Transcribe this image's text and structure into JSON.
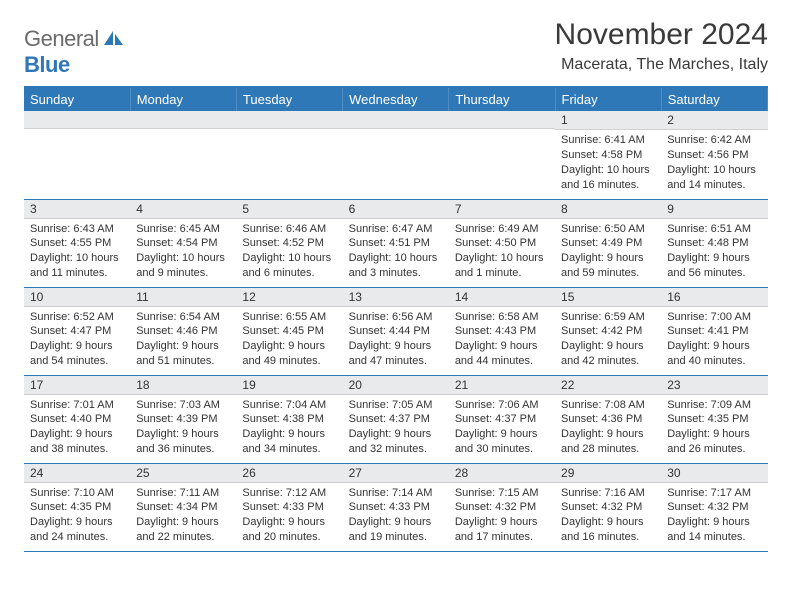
{
  "brand": {
    "name_a": "General",
    "name_b": "Blue"
  },
  "title": "November 2024",
  "location": "Macerata, The Marches, Italy",
  "colors": {
    "accent": "#2f78b7",
    "header_bg": "#2f78b7",
    "daynum_bg": "#e9eaeb",
    "text": "#333333"
  },
  "weekday_labels": [
    "Sunday",
    "Monday",
    "Tuesday",
    "Wednesday",
    "Thursday",
    "Friday",
    "Saturday"
  ],
  "weeks": [
    [
      null,
      null,
      null,
      null,
      null,
      {
        "n": "1",
        "sunrise": "Sunrise: 6:41 AM",
        "sunset": "Sunset: 4:58 PM",
        "daylight": "Daylight: 10 hours and 16 minutes."
      },
      {
        "n": "2",
        "sunrise": "Sunrise: 6:42 AM",
        "sunset": "Sunset: 4:56 PM",
        "daylight": "Daylight: 10 hours and 14 minutes."
      }
    ],
    [
      {
        "n": "3",
        "sunrise": "Sunrise: 6:43 AM",
        "sunset": "Sunset: 4:55 PM",
        "daylight": "Daylight: 10 hours and 11 minutes."
      },
      {
        "n": "4",
        "sunrise": "Sunrise: 6:45 AM",
        "sunset": "Sunset: 4:54 PM",
        "daylight": "Daylight: 10 hours and 9 minutes."
      },
      {
        "n": "5",
        "sunrise": "Sunrise: 6:46 AM",
        "sunset": "Sunset: 4:52 PM",
        "daylight": "Daylight: 10 hours and 6 minutes."
      },
      {
        "n": "6",
        "sunrise": "Sunrise: 6:47 AM",
        "sunset": "Sunset: 4:51 PM",
        "daylight": "Daylight: 10 hours and 3 minutes."
      },
      {
        "n": "7",
        "sunrise": "Sunrise: 6:49 AM",
        "sunset": "Sunset: 4:50 PM",
        "daylight": "Daylight: 10 hours and 1 minute."
      },
      {
        "n": "8",
        "sunrise": "Sunrise: 6:50 AM",
        "sunset": "Sunset: 4:49 PM",
        "daylight": "Daylight: 9 hours and 59 minutes."
      },
      {
        "n": "9",
        "sunrise": "Sunrise: 6:51 AM",
        "sunset": "Sunset: 4:48 PM",
        "daylight": "Daylight: 9 hours and 56 minutes."
      }
    ],
    [
      {
        "n": "10",
        "sunrise": "Sunrise: 6:52 AM",
        "sunset": "Sunset: 4:47 PM",
        "daylight": "Daylight: 9 hours and 54 minutes."
      },
      {
        "n": "11",
        "sunrise": "Sunrise: 6:54 AM",
        "sunset": "Sunset: 4:46 PM",
        "daylight": "Daylight: 9 hours and 51 minutes."
      },
      {
        "n": "12",
        "sunrise": "Sunrise: 6:55 AM",
        "sunset": "Sunset: 4:45 PM",
        "daylight": "Daylight: 9 hours and 49 minutes."
      },
      {
        "n": "13",
        "sunrise": "Sunrise: 6:56 AM",
        "sunset": "Sunset: 4:44 PM",
        "daylight": "Daylight: 9 hours and 47 minutes."
      },
      {
        "n": "14",
        "sunrise": "Sunrise: 6:58 AM",
        "sunset": "Sunset: 4:43 PM",
        "daylight": "Daylight: 9 hours and 44 minutes."
      },
      {
        "n": "15",
        "sunrise": "Sunrise: 6:59 AM",
        "sunset": "Sunset: 4:42 PM",
        "daylight": "Daylight: 9 hours and 42 minutes."
      },
      {
        "n": "16",
        "sunrise": "Sunrise: 7:00 AM",
        "sunset": "Sunset: 4:41 PM",
        "daylight": "Daylight: 9 hours and 40 minutes."
      }
    ],
    [
      {
        "n": "17",
        "sunrise": "Sunrise: 7:01 AM",
        "sunset": "Sunset: 4:40 PM",
        "daylight": "Daylight: 9 hours and 38 minutes."
      },
      {
        "n": "18",
        "sunrise": "Sunrise: 7:03 AM",
        "sunset": "Sunset: 4:39 PM",
        "daylight": "Daylight: 9 hours and 36 minutes."
      },
      {
        "n": "19",
        "sunrise": "Sunrise: 7:04 AM",
        "sunset": "Sunset: 4:38 PM",
        "daylight": "Daylight: 9 hours and 34 minutes."
      },
      {
        "n": "20",
        "sunrise": "Sunrise: 7:05 AM",
        "sunset": "Sunset: 4:37 PM",
        "daylight": "Daylight: 9 hours and 32 minutes."
      },
      {
        "n": "21",
        "sunrise": "Sunrise: 7:06 AM",
        "sunset": "Sunset: 4:37 PM",
        "daylight": "Daylight: 9 hours and 30 minutes."
      },
      {
        "n": "22",
        "sunrise": "Sunrise: 7:08 AM",
        "sunset": "Sunset: 4:36 PM",
        "daylight": "Daylight: 9 hours and 28 minutes."
      },
      {
        "n": "23",
        "sunrise": "Sunrise: 7:09 AM",
        "sunset": "Sunset: 4:35 PM",
        "daylight": "Daylight: 9 hours and 26 minutes."
      }
    ],
    [
      {
        "n": "24",
        "sunrise": "Sunrise: 7:10 AM",
        "sunset": "Sunset: 4:35 PM",
        "daylight": "Daylight: 9 hours and 24 minutes."
      },
      {
        "n": "25",
        "sunrise": "Sunrise: 7:11 AM",
        "sunset": "Sunset: 4:34 PM",
        "daylight": "Daylight: 9 hours and 22 minutes."
      },
      {
        "n": "26",
        "sunrise": "Sunrise: 7:12 AM",
        "sunset": "Sunset: 4:33 PM",
        "daylight": "Daylight: 9 hours and 20 minutes."
      },
      {
        "n": "27",
        "sunrise": "Sunrise: 7:14 AM",
        "sunset": "Sunset: 4:33 PM",
        "daylight": "Daylight: 9 hours and 19 minutes."
      },
      {
        "n": "28",
        "sunrise": "Sunrise: 7:15 AM",
        "sunset": "Sunset: 4:32 PM",
        "daylight": "Daylight: 9 hours and 17 minutes."
      },
      {
        "n": "29",
        "sunrise": "Sunrise: 7:16 AM",
        "sunset": "Sunset: 4:32 PM",
        "daylight": "Daylight: 9 hours and 16 minutes."
      },
      {
        "n": "30",
        "sunrise": "Sunrise: 7:17 AM",
        "sunset": "Sunset: 4:32 PM",
        "daylight": "Daylight: 9 hours and 14 minutes."
      }
    ]
  ]
}
